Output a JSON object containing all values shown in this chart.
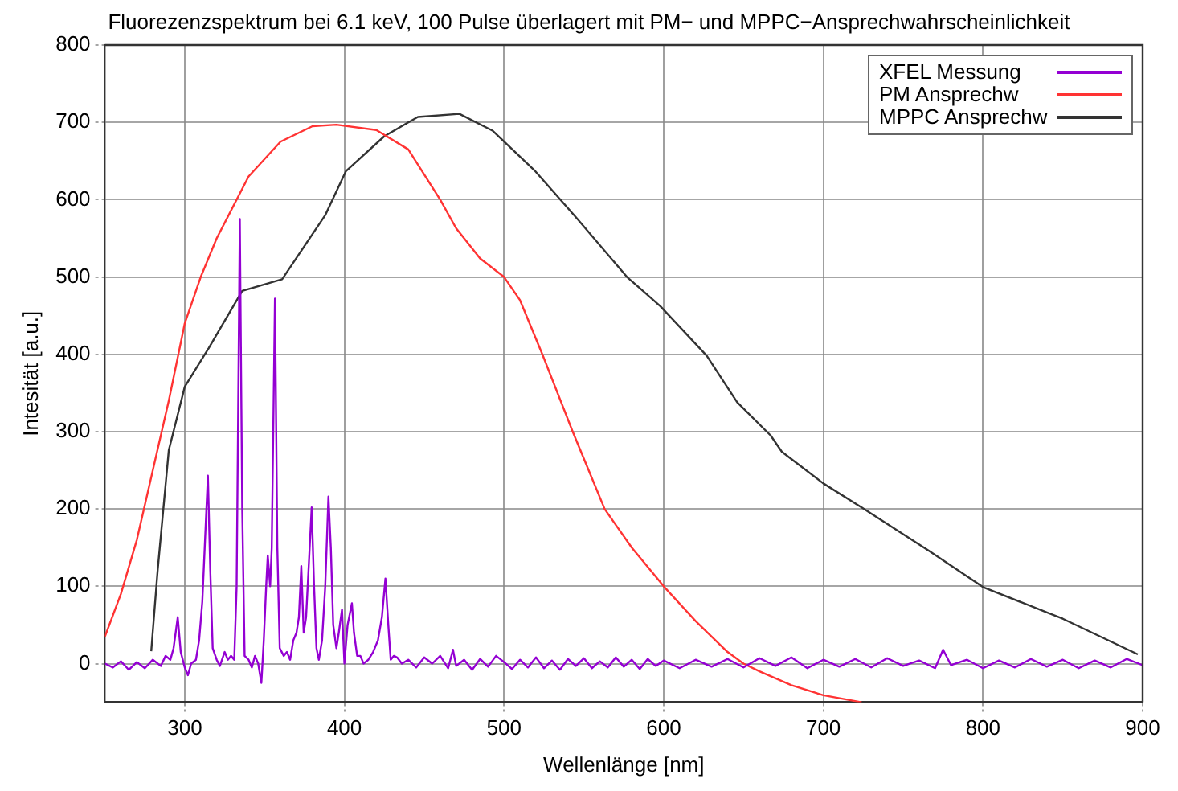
{
  "chart_data": {
    "type": "line",
    "title": "Fluorezenzspektrum bei 6.1 keV, 100 Pulse überlagert mit PM− und MPPC−Ansprechwahrscheinlichkeit",
    "xlabel": "Wellenlänge [nm]",
    "ylabel": "Intesität [a.u.]",
    "xlim": [
      250,
      900
    ],
    "xticks": [
      300,
      400,
      500,
      600,
      700,
      800,
      900
    ],
    "ylim": [
      -50,
      800
    ],
    "yticks": [
      0,
      100,
      200,
      300,
      400,
      500,
      600,
      700,
      800
    ],
    "grid": true,
    "legend": "top right",
    "marker": "none",
    "line_style": "solid",
    "series": [
      {
        "name": "XFEL Messung",
        "color": "#9400d3",
        "x": [
          250,
          255,
          260,
          265,
          270,
          275,
          280,
          285,
          288,
          291,
          293,
          295.6,
          297.5,
          300,
          302,
          304,
          307,
          309,
          311,
          312.5,
          314.5,
          316,
          317.5,
          320,
          322,
          325,
          327,
          329,
          331,
          332.5,
          334.5,
          336,
          337.5,
          340,
          342,
          344,
          346,
          348,
          349.5,
          351,
          352,
          353.5,
          354.5,
          356.5,
          358,
          359.5,
          362,
          364,
          366,
          368,
          370,
          371.5,
          373,
          374.5,
          376,
          378,
          379.5,
          381,
          382.5,
          384,
          386,
          388,
          390,
          391.5,
          393,
          395,
          396.5,
          398.5,
          400,
          402,
          404.7,
          406,
          408,
          410,
          412,
          415,
          418,
          421,
          423.5,
          425.7,
          427.5,
          429,
          431,
          433,
          436,
          440,
          445,
          450,
          455,
          460,
          465,
          468,
          470,
          475,
          480,
          485,
          490,
          495,
          500,
          505,
          510,
          515,
          520,
          525,
          530,
          535,
          540,
          545,
          550,
          555,
          560,
          565,
          570,
          575,
          580,
          585,
          590,
          595,
          600,
          610,
          620,
          630,
          640,
          650,
          660,
          670,
          680,
          690,
          700,
          710,
          720,
          730,
          740,
          750,
          760,
          770,
          775,
          780,
          790,
          800,
          810,
          820,
          830,
          840,
          850,
          860,
          870,
          880,
          890,
          900
        ],
        "values": [
          0,
          -5,
          3,
          -8,
          2,
          -6,
          5,
          -3,
          10,
          5,
          20,
          60,
          15,
          -5,
          -15,
          0,
          5,
          30,
          80,
          150,
          243,
          120,
          20,
          5,
          -3,
          15,
          5,
          10,
          5,
          100,
          575,
          200,
          10,
          5,
          -5,
          10,
          0,
          -25,
          30,
          100,
          140,
          100,
          150,
          472,
          150,
          20,
          10,
          15,
          5,
          30,
          40,
          60,
          126,
          40,
          60,
          140,
          202,
          100,
          20,
          5,
          30,
          100,
          216,
          150,
          50,
          20,
          40,
          70,
          0,
          50,
          78,
          40,
          10,
          10,
          0,
          5,
          15,
          30,
          60,
          110,
          50,
          5,
          10,
          8,
          0,
          5,
          -5,
          8,
          0,
          10,
          -6,
          18,
          -3,
          5,
          -8,
          6,
          -4,
          10,
          2,
          -7,
          5,
          -5,
          8,
          -6,
          4,
          -8,
          6,
          -3,
          7,
          -6,
          3,
          -5,
          8,
          -4,
          5,
          -7,
          6,
          -3,
          4,
          -6,
          5,
          -4,
          6,
          -5,
          7,
          -3,
          8,
          -6,
          5,
          -4,
          6,
          -5,
          7,
          -3,
          4,
          -6,
          18,
          -2,
          5,
          -6,
          4,
          -5,
          6,
          -4,
          5,
          -6,
          4,
          -5,
          6,
          -2
        ]
      },
      {
        "name": "PM Ansprechw",
        "color": "#ff3333",
        "x": [
          250,
          260,
          270,
          280,
          290,
          300,
          310,
          320,
          340,
          360,
          380,
          395,
          420,
          440,
          460,
          470,
          485,
          500,
          510,
          524,
          543,
          553,
          563,
          580,
          600,
          620,
          640,
          650,
          660,
          680,
          700,
          724
        ],
        "values": [
          35,
          90,
          160,
          250,
          340,
          440,
          500,
          550,
          630,
          675,
          695,
          697,
          690,
          665,
          600,
          563,
          524,
          500,
          470,
          400,
          300,
          250,
          200,
          150,
          100,
          55,
          15,
          0,
          -10,
          -28,
          -41,
          -50
        ]
      },
      {
        "name": "MPPC Ansprechw",
        "color": "#333333",
        "x": [
          279,
          283,
          290,
          300,
          315,
          336,
          361,
          388,
          401,
          425,
          446,
          472,
          493,
          519,
          546,
          577,
          587,
          598,
          627,
          646,
          667,
          674,
          700,
          724,
          766,
          800,
          850,
          897
        ],
        "values": [
          16,
          120,
          276,
          358,
          408,
          482,
          497,
          580,
          637,
          682,
          707,
          711,
          689,
          638,
          575,
          500,
          482,
          462,
          398,
          338,
          295,
          274,
          233,
          202,
          146,
          99,
          58,
          12
        ]
      }
    ]
  }
}
